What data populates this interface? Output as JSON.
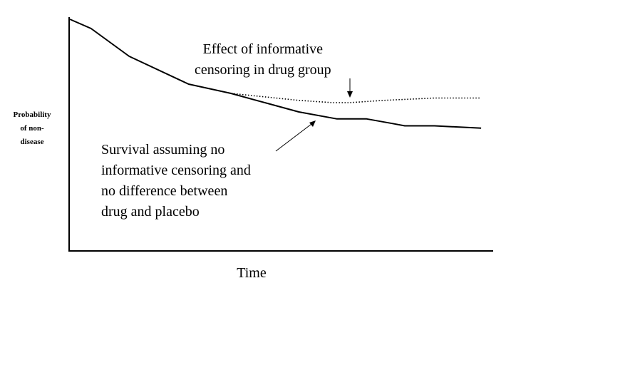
{
  "chart_data": {
    "type": "line",
    "title": "",
    "xlabel": "Time",
    "ylabel": "Probability of non-disease",
    "ylabel_lines": [
      "Probability",
      "of non-",
      "disease"
    ],
    "xlim": [
      0,
      1
    ],
    "ylim": [
      0,
      1
    ],
    "grid": false,
    "legend": "none",
    "series": [
      {
        "style": "solid",
        "color": "#000000",
        "x": [
          0,
          0.05,
          0.14,
          0.28,
          0.38,
          0.44,
          0.54,
          0.63,
          0.7,
          0.76,
          0.79,
          0.86,
          0.97
        ],
        "y": [
          1.0,
          0.96,
          0.84,
          0.72,
          0.68,
          0.65,
          0.6,
          0.57,
          0.57,
          0.55,
          0.54,
          0.54,
          0.53
        ]
      },
      {
        "style": "dotted",
        "color": "#000000",
        "x": [
          0.38,
          0.46,
          0.54,
          0.62,
          0.66,
          0.74,
          0.86,
          0.97
        ],
        "y": [
          0.68,
          0.665,
          0.65,
          0.64,
          0.64,
          0.65,
          0.66,
          0.66
        ]
      }
    ],
    "annotations": [
      {
        "lines": [
          "Effect of informative",
          "censoring in drug group"
        ],
        "position": "top-center"
      },
      {
        "lines": [
          "Survival assuming no",
          "informative censoring and",
          "no difference between",
          "drug and placebo"
        ],
        "position": "center-left"
      }
    ]
  }
}
